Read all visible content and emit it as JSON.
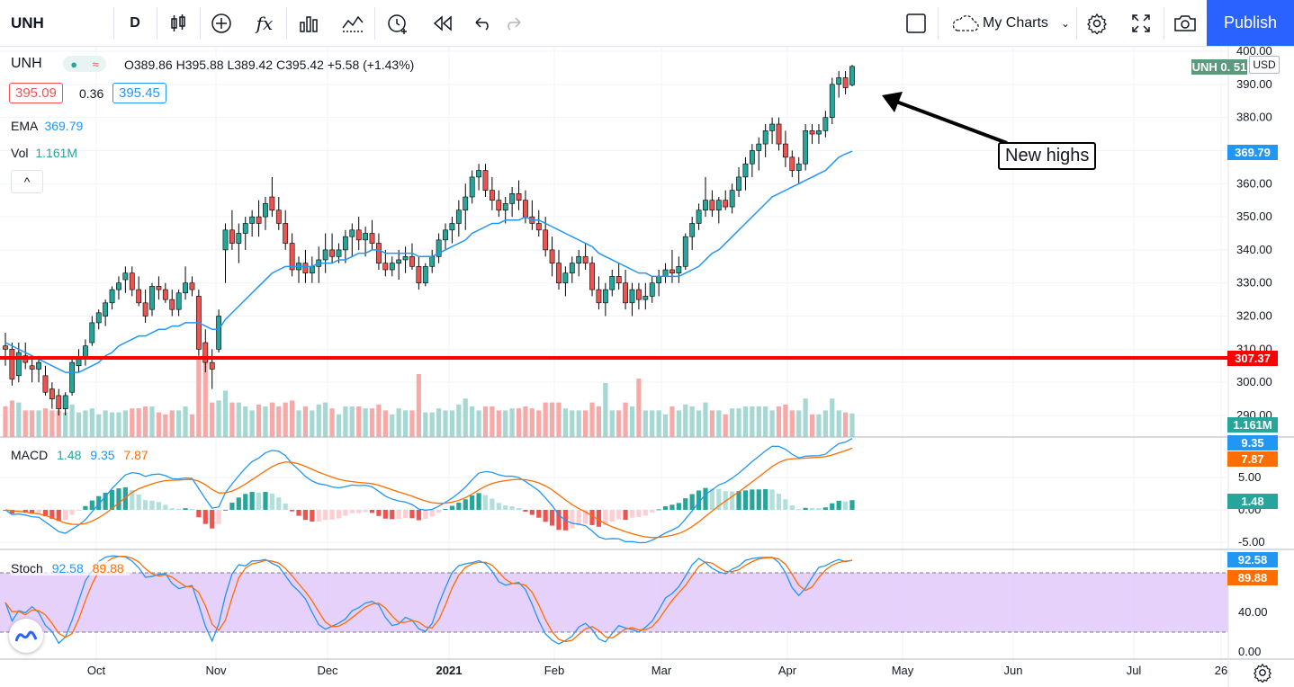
{
  "toolbar": {
    "symbol": "UNH",
    "interval": "D",
    "indicator_fx": "fx",
    "my_charts": "My Charts",
    "publish": "Publish",
    "icons": [
      "candles-icon",
      "plus-circle-icon",
      "fx-icon",
      "bars-icon",
      "line-chart-icon",
      "alert-clock-icon",
      "replay-icon",
      "undo-icon",
      "redo-icon",
      "layout-square-icon",
      "cloud-icon",
      "gear-icon",
      "fullscreen-icon",
      "camera-icon"
    ]
  },
  "legend": {
    "symbol": "UNH",
    "o_label": "O",
    "o": "389.86",
    "h_label": "H",
    "h": "395.88",
    "l_label": "L",
    "l": "389.42",
    "c_label": "C",
    "c": "395.42",
    "change": "+5.58 (+1.43%)",
    "bid": "395.09",
    "spread": "0.36",
    "ask": "395.45",
    "ema_label": "EMA",
    "ema": "369.79",
    "vol_label": "Vol",
    "vol": "1.161M",
    "macd_label": "MACD",
    "macd1": "1.48",
    "macd2": "9.35",
    "macd3": "7.87",
    "stoch_label": "Stoch",
    "stoch1": "92.58",
    "stoch2": "89.88",
    "collapse": "^"
  },
  "price_labels": {
    "currency": "USD",
    "last": "UNH  0. 51",
    "ema": "369.79",
    "hline": "307.37",
    "vol": "1.161M",
    "macd_a": "9.35",
    "macd_b": "7.87",
    "macd_hist": "1.48",
    "stoch_a": "92.58",
    "stoch_b": "89.88"
  },
  "annotation": "New highs",
  "colors": {
    "up": "#26a69a",
    "down": "#ef5350",
    "ema": "#2196f3",
    "hline": "#ff0000",
    "macd": "#2196f3",
    "signal": "#ff6d00",
    "stoch_band": "#e1c9f9",
    "publish": "#2962ff"
  },
  "chart_data": [
    {
      "type": "candlestick",
      "title": "UNH",
      "ylabel": "USD",
      "ylim": [
        285,
        400
      ],
      "yticks": [
        "400.00",
        "390.00",
        "380.00",
        "370.00",
        "360.00",
        "350.00",
        "340.00",
        "330.00",
        "320.00",
        "310.00",
        "300.00",
        "290.00"
      ],
      "xticks": [
        "Oct",
        "Nov",
        "Dec",
        "2021",
        "Feb",
        "Mar",
        "Apr",
        "May",
        "Jun",
        "Jul",
        "26"
      ],
      "ohlc": [
        [
          311,
          315,
          305,
          310
        ],
        [
          310,
          312,
          299,
          301
        ],
        [
          302,
          312,
          300,
          309
        ],
        [
          308,
          312,
          304,
          306
        ],
        [
          305,
          308,
          300,
          304
        ],
        [
          304,
          308,
          300,
          306
        ],
        [
          302,
          305,
          296,
          297
        ],
        [
          298,
          300,
          292,
          295
        ],
        [
          296,
          298,
          290,
          292
        ],
        [
          292,
          297,
          290,
          296
        ],
        [
          297,
          307,
          296,
          306
        ],
        [
          305,
          310,
          303,
          307
        ],
        [
          307,
          313,
          305,
          311
        ],
        [
          312,
          320,
          311,
          318
        ],
        [
          318,
          322,
          316,
          321
        ],
        [
          320,
          325,
          317,
          324
        ],
        [
          324,
          329,
          322,
          328
        ],
        [
          328,
          332,
          325,
          330
        ],
        [
          331,
          335,
          327,
          333
        ],
        [
          333,
          335,
          326,
          328
        ],
        [
          328,
          332,
          323,
          324
        ],
        [
          324,
          328,
          318,
          320
        ],
        [
          322,
          330,
          320,
          329
        ],
        [
          329,
          332,
          325,
          328
        ],
        [
          328,
          330,
          324,
          325
        ],
        [
          325,
          328,
          320,
          322
        ],
        [
          322,
          328,
          320,
          327
        ],
        [
          327,
          335,
          325,
          330
        ],
        [
          330,
          332,
          326,
          328
        ],
        [
          326,
          328,
          308,
          310
        ],
        [
          312,
          316,
          303,
          306
        ],
        [
          306,
          310,
          298,
          304
        ],
        [
          310,
          322,
          309,
          320
        ],
        [
          340,
          348,
          330,
          346
        ],
        [
          346,
          352,
          340,
          342
        ],
        [
          342,
          348,
          336,
          345
        ],
        [
          345,
          350,
          340,
          348
        ],
        [
          348,
          352,
          344,
          350
        ],
        [
          350,
          355,
          344,
          348
        ],
        [
          350,
          356,
          346,
          354
        ],
        [
          356,
          362,
          350,
          352
        ],
        [
          352,
          356,
          346,
          348
        ],
        [
          348,
          352,
          340,
          342
        ],
        [
          342,
          345,
          332,
          334
        ],
        [
          334,
          338,
          330,
          336
        ],
        [
          336,
          340,
          330,
          333
        ],
        [
          333,
          338,
          330,
          335
        ],
        [
          335,
          341,
          330,
          337
        ],
        [
          337,
          345,
          333,
          340
        ],
        [
          340,
          345,
          336,
          338
        ],
        [
          338,
          342,
          336,
          340
        ],
        [
          340,
          346,
          336,
          344
        ],
        [
          344,
          348,
          338,
          346
        ],
        [
          346,
          350,
          340,
          343
        ],
        [
          343,
          347,
          338,
          345
        ],
        [
          345,
          349,
          340,
          342
        ],
        [
          342,
          345,
          334,
          336
        ],
        [
          336,
          340,
          332,
          334
        ],
        [
          334,
          338,
          332,
          336
        ],
        [
          336,
          340,
          331,
          337
        ],
        [
          337,
          341,
          333,
          338
        ],
        [
          338,
          342,
          334,
          335
        ],
        [
          335,
          338,
          328,
          330
        ],
        [
          330,
          336,
          329,
          335
        ],
        [
          335,
          340,
          333,
          338
        ],
        [
          338,
          345,
          336,
          343
        ],
        [
          343,
          348,
          340,
          346
        ],
        [
          346,
          350,
          342,
          348
        ],
        [
          348,
          355,
          344,
          352
        ],
        [
          352,
          360,
          346,
          356
        ],
        [
          356,
          364,
          354,
          362
        ],
        [
          362,
          366,
          358,
          364
        ],
        [
          364,
          366,
          356,
          358
        ],
        [
          358,
          362,
          352,
          355
        ],
        [
          355,
          358,
          350,
          352
        ],
        [
          352,
          356,
          348,
          354
        ],
        [
          354,
          359,
          350,
          357
        ],
        [
          357,
          361,
          352,
          355
        ],
        [
          355,
          358,
          348,
          350
        ],
        [
          350,
          355,
          346,
          348
        ],
        [
          348,
          352,
          344,
          346
        ],
        [
          346,
          350,
          338,
          340
        ],
        [
          340,
          344,
          332,
          336
        ],
        [
          336,
          340,
          328,
          330
        ],
        [
          330,
          335,
          326,
          333
        ],
        [
          333,
          338,
          330,
          336
        ],
        [
          336,
          340,
          332,
          338
        ],
        [
          338,
          342,
          334,
          336
        ],
        [
          336,
          338,
          326,
          328
        ],
        [
          328,
          332,
          322,
          324
        ],
        [
          324,
          330,
          320,
          328
        ],
        [
          328,
          334,
          326,
          332
        ],
        [
          332,
          336,
          328,
          330
        ],
        [
          330,
          334,
          322,
          324
        ],
        [
          324,
          330,
          320,
          328
        ],
        [
          328,
          330,
          322,
          325
        ],
        [
          325,
          330,
          322,
          326
        ],
        [
          326,
          332,
          324,
          330
        ],
        [
          330,
          334,
          326,
          332
        ],
        [
          332,
          336,
          330,
          334
        ],
        [
          334,
          340,
          330,
          333
        ],
        [
          333,
          338,
          330,
          335
        ],
        [
          335,
          345,
          334,
          344
        ],
        [
          344,
          350,
          340,
          348
        ],
        [
          348,
          354,
          346,
          352
        ],
        [
          352,
          362,
          350,
          355
        ],
        [
          355,
          358,
          350,
          352
        ],
        [
          352,
          356,
          348,
          355
        ],
        [
          355,
          358,
          352,
          353
        ],
        [
          353,
          360,
          351,
          358
        ],
        [
          358,
          365,
          356,
          362
        ],
        [
          362,
          368,
          358,
          366
        ],
        [
          366,
          372,
          362,
          370
        ],
        [
          370,
          374,
          364,
          372
        ],
        [
          372,
          378,
          368,
          376
        ],
        [
          376,
          380,
          372,
          378
        ],
        [
          378,
          380,
          370,
          372
        ],
        [
          372,
          376,
          365,
          368
        ],
        [
          368,
          370,
          362,
          364
        ],
        [
          364,
          368,
          360,
          366
        ],
        [
          366,
          378,
          364,
          376
        ],
        [
          376,
          378,
          372,
          375
        ],
        [
          375,
          378,
          372,
          376
        ],
        [
          376,
          382,
          374,
          380
        ],
        [
          380,
          392,
          378,
          390
        ],
        [
          390,
          394,
          386,
          392
        ],
        [
          392,
          394,
          387,
          389
        ],
        [
          389.86,
          395.88,
          389.42,
          395.42
        ]
      ],
      "ema_values": [
        312,
        311,
        310,
        309,
        308,
        307,
        306,
        305,
        304,
        303,
        303,
        303,
        304,
        305,
        306,
        308,
        309,
        311,
        312,
        313,
        314,
        314,
        315,
        316,
        316,
        317,
        317,
        318,
        318,
        318,
        317,
        316,
        316,
        319,
        321,
        323,
        325,
        327,
        329,
        331,
        333,
        334,
        335,
        335,
        335,
        335,
        335,
        336,
        336,
        336,
        337,
        337,
        338,
        339,
        339,
        340,
        340,
        339,
        339,
        339,
        339,
        339,
        338,
        338,
        338,
        339,
        340,
        341,
        342,
        343,
        345,
        346,
        347,
        348,
        348,
        349,
        349,
        349,
        350,
        349,
        349,
        348,
        347,
        346,
        345,
        344,
        343,
        342,
        341,
        339,
        338,
        337,
        336,
        335,
        334,
        333,
        333,
        332,
        332,
        332,
        332,
        332,
        333,
        334,
        335,
        337,
        339,
        340,
        342,
        344,
        346,
        348,
        350,
        352,
        354,
        356,
        357,
        358,
        359,
        360,
        361,
        362,
        363,
        364,
        366,
        368,
        369,
        369.79
      ],
      "hline": 307.37,
      "volume_last": "1.161M"
    },
    {
      "type": "line",
      "title": "MACD",
      "ylim": [
        -7,
        15
      ],
      "yticks": [
        "5.00",
        "0.00",
        "-5.00"
      ],
      "series": [
        {
          "name": "MACD",
          "last": "9.35"
        },
        {
          "name": "Signal",
          "last": "7.87"
        },
        {
          "name": "Histogram",
          "last": "1.48"
        }
      ]
    },
    {
      "type": "line",
      "title": "Stoch",
      "ylim": [
        -2,
        110
      ],
      "yticks": [
        "40.00",
        "0.00"
      ],
      "bands": [
        20,
        80
      ],
      "series": [
        {
          "name": "%K",
          "last": "92.58"
        },
        {
          "name": "%D",
          "last": "89.88"
        }
      ]
    }
  ]
}
